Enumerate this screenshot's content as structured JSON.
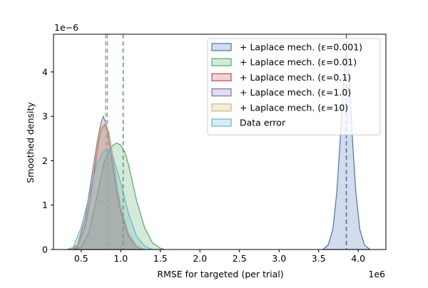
{
  "chart_data": {
    "type": "area",
    "title": "",
    "xlabel": "RMSE for targeted (per trial)",
    "ylabel": "Smoothed density",
    "x_scale_label": "1e6",
    "y_scale_label": "1e−6",
    "xlim": [
      0.15,
      4.35
    ],
    "ylim": [
      0,
      4.85
    ],
    "x_ticks": [
      0.5,
      1.0,
      1.5,
      2.0,
      2.5,
      3.0,
      3.5,
      4.0
    ],
    "x_tick_labels": [
      "0.5",
      "1.0",
      "1.5",
      "2.0",
      "2.5",
      "3.0",
      "3.5",
      "4.0"
    ],
    "y_ticks": [
      0,
      1,
      2,
      3,
      4
    ],
    "y_tick_labels": [
      "0",
      "1",
      "2",
      "3",
      "4"
    ],
    "grid": false,
    "legend_position": "top-right",
    "x_units": "×1e6",
    "y_units": "×1e−6",
    "series": [
      {
        "name": "+ Laplace mech. (ε=0.001)",
        "color": "#4c72b0",
        "mean": 3.85,
        "x": [
          3.55,
          3.62,
          3.68,
          3.73,
          3.77,
          3.8,
          3.83,
          3.85,
          3.87,
          3.9,
          3.93,
          3.97,
          4.02,
          4.08,
          4.15
        ],
        "y": [
          0,
          0.1,
          0.45,
          1.3,
          2.4,
          3.4,
          4.2,
          4.45,
          4.2,
          3.4,
          2.4,
          1.3,
          0.45,
          0.1,
          0
        ]
      },
      {
        "name": "+ Laplace mech. (ε=0.01)",
        "color": "#55a868",
        "mean": 1.03,
        "x": [
          0.4,
          0.5,
          0.6,
          0.7,
          0.8,
          0.9,
          0.95,
          1.0,
          1.05,
          1.1,
          1.2,
          1.3,
          1.4,
          1.5,
          1.55
        ],
        "y": [
          0,
          0.05,
          0.4,
          1.2,
          2.05,
          2.35,
          2.4,
          2.35,
          2.2,
          1.9,
          1.1,
          0.5,
          0.15,
          0.03,
          0
        ]
      },
      {
        "name": "+ Laplace mech. (ε=0.1)",
        "color": "#c44e52",
        "mean": 0.81,
        "x": [
          0.38,
          0.45,
          0.55,
          0.62,
          0.7,
          0.75,
          0.8,
          0.85,
          0.9,
          0.95,
          1.0,
          1.1,
          1.2,
          1.3
        ],
        "y": [
          0,
          0.05,
          0.5,
          1.2,
          2.2,
          2.7,
          2.8,
          2.6,
          2.1,
          1.5,
          0.95,
          0.35,
          0.08,
          0
        ]
      },
      {
        "name": "+ Laplace mech. (ε=1.0)",
        "color": "#8172b2",
        "mean": 0.81,
        "x": [
          0.35,
          0.45,
          0.55,
          0.62,
          0.7,
          0.75,
          0.78,
          0.82,
          0.88,
          0.95,
          1.0,
          1.1,
          1.2,
          1.3
        ],
        "y": [
          0,
          0.1,
          0.7,
          1.5,
          2.4,
          2.85,
          3.0,
          2.8,
          2.1,
          1.3,
          0.85,
          0.3,
          0.06,
          0
        ]
      },
      {
        "name": "+ Laplace mech. (ε=10)",
        "color": "#ccb974",
        "mean": 0.81,
        "x": [
          0.36,
          0.45,
          0.55,
          0.62,
          0.7,
          0.75,
          0.8,
          0.85,
          0.9,
          0.95,
          1.0,
          1.1,
          1.2,
          1.3
        ],
        "y": [
          0,
          0.08,
          0.6,
          1.4,
          2.3,
          2.75,
          2.85,
          2.65,
          2.1,
          1.5,
          0.95,
          0.35,
          0.08,
          0
        ]
      },
      {
        "name": "Data error",
        "color": "#64b5cd",
        "mean": 0.83,
        "x": [
          0.32,
          0.4,
          0.5,
          0.6,
          0.7,
          0.78,
          0.85,
          0.9,
          1.0,
          1.1,
          1.2,
          1.3,
          1.4
        ],
        "y": [
          0,
          0.05,
          0.5,
          1.2,
          1.95,
          2.2,
          2.25,
          2.1,
          1.5,
          0.8,
          0.3,
          0.08,
          0
        ]
      }
    ]
  }
}
